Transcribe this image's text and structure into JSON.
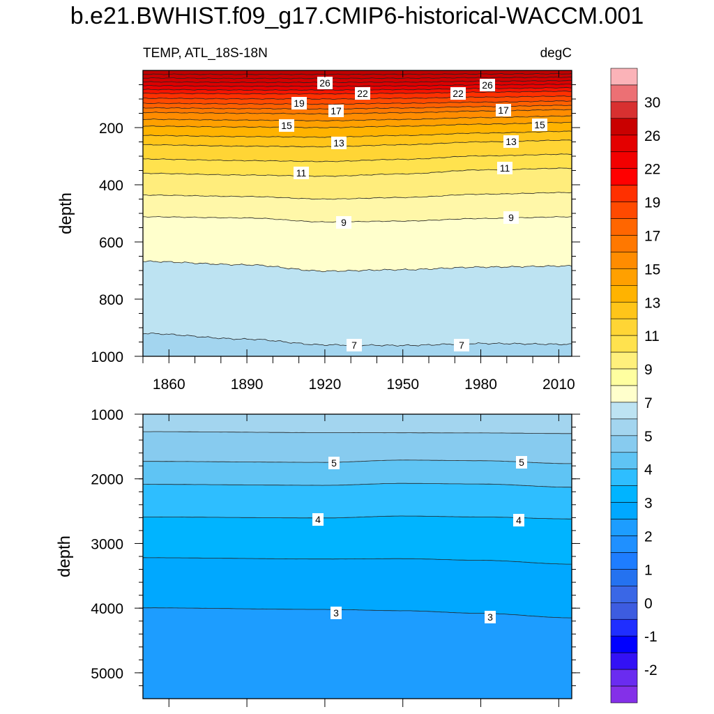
{
  "title": "b.e21.BWHIST.f09_g17.CMIP6-historical-WACCM.001",
  "chart_data": [
    {
      "type": "heatmap",
      "subtype": "filled-contour",
      "left_string": "TEMP, ATL_18S-18N",
      "right_string": "degC",
      "ylabel": "depth",
      "xlim": [
        1850,
        2015
      ],
      "ylim": [
        0,
        1000
      ],
      "y_inverted": true,
      "x_ticks": [
        1860,
        1890,
        1920,
        1950,
        1980,
        2010
      ],
      "y_ticks": [
        200,
        400,
        600,
        800,
        1000
      ],
      "contour_levels": [
        7,
        9,
        11,
        13,
        15,
        17,
        19,
        22,
        26
      ],
      "contour_depths": {
        "7": [
          [
            1850,
            920
          ],
          [
            1890,
            940
          ],
          [
            1920,
            960
          ],
          [
            1950,
            962
          ],
          [
            1980,
            955
          ],
          [
            2015,
            958
          ]
        ],
        "9": [
          [
            1850,
            512
          ],
          [
            1890,
            516
          ],
          [
            1920,
            530
          ],
          [
            1950,
            527
          ],
          [
            1980,
            518
          ],
          [
            2015,
            512
          ]
        ],
        "9_lower": [
          [
            1850,
            668
          ],
          [
            1890,
            680
          ],
          [
            1920,
            702
          ],
          [
            1950,
            697
          ],
          [
            1980,
            688
          ],
          [
            2015,
            684
          ]
        ],
        "11": [
          [
            1850,
            360
          ],
          [
            1890,
            366
          ],
          [
            1920,
            370
          ],
          [
            1950,
            362
          ],
          [
            1980,
            348
          ],
          [
            2015,
            342
          ]
        ],
        "13": [
          [
            1850,
            260
          ],
          [
            1890,
            265
          ],
          [
            1920,
            267
          ],
          [
            1950,
            260
          ],
          [
            1980,
            250
          ],
          [
            2015,
            244
          ]
        ],
        "15": [
          [
            1850,
            195
          ],
          [
            1890,
            198
          ],
          [
            1920,
            200
          ],
          [
            1950,
            195
          ],
          [
            1980,
            188
          ],
          [
            2015,
            182
          ]
        ],
        "17": [
          [
            1850,
            147
          ],
          [
            1890,
            150
          ],
          [
            1920,
            152
          ],
          [
            1950,
            148
          ],
          [
            1980,
            142
          ],
          [
            2015,
            137
          ]
        ],
        "19": [
          [
            1850,
            115
          ],
          [
            1890,
            117
          ],
          [
            1920,
            118
          ],
          [
            1950,
            115
          ],
          [
            1980,
            111
          ],
          [
            2015,
            107
          ]
        ],
        "22": [
          [
            1850,
            80
          ],
          [
            1890,
            82
          ],
          [
            1920,
            82
          ],
          [
            1950,
            80
          ],
          [
            1980,
            76
          ],
          [
            2015,
            73
          ]
        ],
        "26": [
          [
            1850,
            40
          ],
          [
            1890,
            42
          ],
          [
            1920,
            42
          ],
          [
            1950,
            41
          ],
          [
            1980,
            38
          ],
          [
            2015,
            36
          ]
        ]
      },
      "contour_label_values": [
        "26",
        "22",
        "19",
        "17",
        "15",
        "13",
        "11",
        "9",
        "7",
        "26",
        "22",
        "17",
        "15",
        "13",
        "11",
        "9",
        "7"
      ]
    },
    {
      "type": "heatmap",
      "subtype": "filled-contour",
      "ylabel": "depth",
      "xlim": [
        1850,
        2015
      ],
      "ylim": [
        1000,
        5400
      ],
      "y_inverted": true,
      "y_ticks": [
        1000,
        2000,
        3000,
        4000,
        5000
      ],
      "contour_levels": [
        3,
        4,
        5
      ],
      "contour_depths": {
        "6": [
          [
            1850,
            1270
          ],
          [
            1920,
            1285
          ],
          [
            1980,
            1290
          ],
          [
            2015,
            1300
          ]
        ],
        "5": [
          [
            1850,
            1730
          ],
          [
            1920,
            1745
          ],
          [
            1950,
            1710
          ],
          [
            1980,
            1720
          ],
          [
            2015,
            1765
          ]
        ],
        "4.5": [
          [
            1850,
            2085
          ],
          [
            1920,
            2100
          ],
          [
            1950,
            2070
          ],
          [
            1980,
            2080
          ],
          [
            2015,
            2130
          ]
        ],
        "4": [
          [
            1850,
            2590
          ],
          [
            1920,
            2605
          ],
          [
            1950,
            2575
          ],
          [
            1980,
            2590
          ],
          [
            2015,
            2620
          ]
        ],
        "3.5": [
          [
            1850,
            3220
          ],
          [
            1920,
            3240
          ],
          [
            1950,
            3235
          ],
          [
            1980,
            3260
          ],
          [
            2015,
            3320
          ]
        ],
        "3": [
          [
            1850,
            3995
          ],
          [
            1920,
            4020
          ],
          [
            1950,
            4040
          ],
          [
            1980,
            4080
          ],
          [
            2015,
            4150
          ]
        ]
      },
      "contour_label_values": [
        "5",
        "5",
        "4",
        "4",
        "3",
        "3"
      ]
    }
  ],
  "colorbar": {
    "labels": [
      "30",
      "26",
      "22",
      "19",
      "17",
      "15",
      "13",
      "11",
      "9",
      "7",
      "5",
      "4",
      "3",
      "2",
      "1",
      "0",
      "-1",
      "-2"
    ],
    "colors": [
      "#fbb3b8",
      "#ec7074",
      "#d83030",
      "#c90000",
      "#e40000",
      "#f20000",
      "#ff0000",
      "#ff3000",
      "#ff4a00",
      "#ff6600",
      "#ff7800",
      "#ff8c00",
      "#ffa000",
      "#ffb300",
      "#ffc519",
      "#ffd535",
      "#ffe24e",
      "#fff07c",
      "#ffffa0",
      "#ffffcc",
      "#bde3f2",
      "#a3d5ef",
      "#87cbef",
      "#5fc4f4",
      "#2ebeff",
      "#00b4ff",
      "#00a8ff",
      "#1d9dff",
      "#1f90ff",
      "#1e7dff",
      "#2472f0",
      "#3a67e6",
      "#3d5ce0",
      "#1f2eff",
      "#0000ff",
      "#3311f5",
      "#6a2cf0",
      "#8430e8"
    ]
  },
  "colors": {
    "upper_bands": [
      "#bde3f2",
      "#ffffcc",
      "#fff7a8",
      "#fff07c",
      "#ffe24e",
      "#ffd535",
      "#ffc519",
      "#ffb300",
      "#ffa000",
      "#ff8c00",
      "#ff7800",
      "#ff5a00",
      "#ff3000",
      "#f20000",
      "#e40000",
      "#c90000"
    ],
    "lower_bands": [
      "#a3d5ef",
      "#87cbef",
      "#5fc4f4",
      "#2ebeff",
      "#00b4ff",
      "#00a8ff",
      "#1d9dff"
    ],
    "deep_upper": "#a3d5ef"
  }
}
